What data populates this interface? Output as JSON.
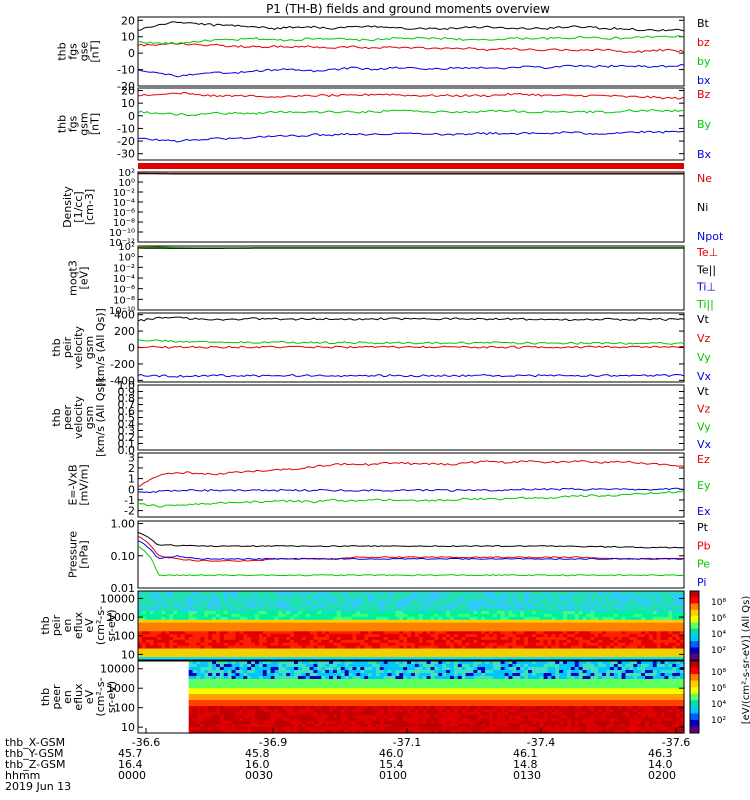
{
  "title": "P1  (TH-B) fields and ground moments overview",
  "colors": {
    "black": "#000000",
    "red": "#e00000",
    "green": "#00c800",
    "blue": "#0000e0"
  },
  "chart_data": [
    {
      "id": "fgs_dsl",
      "type": "line",
      "ylabel": [
        "thb",
        "fgs",
        "gse",
        "[nT]"
      ],
      "yticks": [
        -20,
        -10,
        0,
        10,
        20
      ],
      "ylim": [
        -20,
        22
      ],
      "legend": [
        {
          "name": "Bt",
          "color": "black"
        },
        {
          "name": "bz",
          "color": "red"
        },
        {
          "name": "by",
          "color": "green"
        },
        {
          "name": "bx",
          "color": "blue"
        }
      ],
      "series": [
        {
          "name": "Bt",
          "color": "black",
          "values": [
            14,
            17,
            19,
            18,
            17,
            17,
            16,
            15,
            16,
            16,
            15,
            16,
            16,
            16,
            15,
            15,
            15,
            16,
            16,
            15,
            15,
            15,
            16,
            16,
            15,
            15,
            14,
            14,
            14
          ]
        },
        {
          "name": "bz",
          "color": "red",
          "values": [
            5,
            5,
            6,
            5,
            5,
            4,
            4,
            4,
            4,
            4,
            3,
            4,
            3,
            4,
            3,
            3,
            3,
            3,
            2,
            3,
            2,
            2,
            2,
            2,
            2,
            1,
            1,
            2,
            1
          ]
        },
        {
          "name": "by",
          "color": "green",
          "values": [
            7,
            6,
            6,
            7,
            8,
            8,
            9,
            8,
            8,
            9,
            9,
            8,
            8,
            9,
            9,
            9,
            9,
            8,
            8,
            9,
            9,
            9,
            9,
            10,
            9,
            9,
            10,
            10,
            10
          ]
        },
        {
          "name": "bx",
          "color": "blue",
          "values": [
            -10,
            -12,
            -14,
            -13,
            -12,
            -12,
            -11,
            -10,
            -10,
            -11,
            -10,
            -9,
            -10,
            -9,
            -9,
            -10,
            -9,
            -9,
            -9,
            -9,
            -8,
            -9,
            -8,
            -8,
            -8,
            -8,
            -8,
            -8,
            -7
          ]
        }
      ]
    },
    {
      "id": "fgs_gsm",
      "type": "line",
      "ylabel": [
        "thb",
        "fgs",
        "gsm",
        "[nT]"
      ],
      "yticks": [
        -30,
        -20,
        -10,
        0,
        10,
        20
      ],
      "ylim": [
        -35,
        22
      ],
      "legend": [
        {
          "name": "Bz",
          "color": "red"
        },
        {
          "name": "By",
          "color": "green"
        },
        {
          "name": "Bx",
          "color": "blue"
        }
      ],
      "series": [
        {
          "name": "Bz",
          "color": "red",
          "values": [
            16,
            17,
            18,
            17,
            16,
            16,
            16,
            15,
            15,
            16,
            16,
            16,
            17,
            17,
            16,
            16,
            16,
            16,
            16,
            17,
            17,
            16,
            16,
            16,
            16,
            15,
            15,
            14,
            14
          ]
        },
        {
          "name": "By",
          "color": "green",
          "values": [
            3,
            2,
            1,
            1,
            2,
            2,
            2,
            3,
            3,
            3,
            3,
            3,
            3,
            4,
            4,
            3,
            3,
            3,
            4,
            4,
            3,
            3,
            3,
            3,
            3,
            4,
            4,
            4,
            4
          ]
        },
        {
          "name": "Bx",
          "color": "blue",
          "values": [
            -18,
            -19,
            -20,
            -19,
            -18,
            -18,
            -17,
            -16,
            -16,
            -15,
            -15,
            -14,
            -15,
            -14,
            -14,
            -14,
            -15,
            -14,
            -14,
            -14,
            -14,
            -14,
            -13,
            -14,
            -14,
            -13,
            -13,
            -13,
            -13
          ]
        }
      ]
    },
    {
      "id": "density",
      "type": "line",
      "ylabel": [
        "Density",
        "[1/cc]",
        "[cm-3]"
      ],
      "log": true,
      "ylim": [
        -12,
        2
      ],
      "yticklabels": [
        "10²",
        "10⁰",
        "10⁻²",
        "10⁻⁴",
        "10⁻⁶",
        "10⁻⁸",
        "10⁻¹⁰",
        "10⁻¹²"
      ],
      "legend": [
        {
          "name": "Ne",
          "color": "red"
        },
        {
          "name": "Ni",
          "color": "black"
        },
        {
          "name": "Npot",
          "color": "blue"
        }
      ],
      "series": [
        {
          "name": "Ne",
          "color": "red",
          "values": [
            1.1,
            1.0,
            1.0,
            1.0,
            1.0,
            1.0,
            1.0,
            1.0,
            1.0,
            1.0,
            1.0,
            1.0,
            1.0,
            1.0,
            1.0
          ]
        },
        {
          "name": "Ni",
          "color": "black",
          "values": [
            0.9,
            0.8,
            0.8,
            0.8,
            0.8,
            0.8,
            0.8,
            0.8,
            0.8,
            0.8,
            0.8,
            0.8,
            0.8,
            0.8,
            0.8
          ]
        }
      ]
    },
    {
      "id": "temperature",
      "type": "line",
      "ylabel": [
        "moqt3",
        "[eV]"
      ],
      "log": true,
      "ylim": [
        -10,
        2
      ],
      "yticklabels": [
        "10²",
        "10⁰",
        "10⁻²",
        "10⁻⁴",
        "10⁻⁶",
        "10⁻⁸",
        "10⁻¹⁰"
      ],
      "legend": [
        {
          "name": "Te⊥",
          "color": "red"
        },
        {
          "name": "Te||",
          "color": "black"
        },
        {
          "name": "Ti⊥",
          "color": "blue"
        },
        {
          "name": "Ti||",
          "color": "green"
        }
      ],
      "series": [
        {
          "name": "Te⊥",
          "color": "red",
          "values": [
            1.2,
            0.9,
            0.8,
            0.9,
            0.9,
            0.9,
            0.9,
            0.9,
            0.9,
            0.9,
            0.9,
            0.9,
            0.9,
            0.9,
            0.9
          ]
        },
        {
          "name": "Ti||",
          "color": "green",
          "values": [
            1.6,
            1.0,
            0.9,
            1.0,
            1.0,
            1.0,
            1.0,
            1.0,
            1.0,
            1.0,
            1.0,
            1.0,
            1.0,
            1.0,
            1.0
          ]
        },
        {
          "name": "Te||",
          "color": "black",
          "values": [
            0.8,
            0.7,
            0.7,
            0.8,
            0.8,
            0.8,
            0.8,
            0.8,
            0.8,
            0.8,
            0.8,
            0.8,
            0.8,
            0.8,
            0.8
          ]
        }
      ]
    },
    {
      "id": "peir_velocity",
      "type": "line",
      "ylabel": [
        "thb",
        "peir",
        "velocity",
        "gsm",
        "[km/s (All Qs)]"
      ],
      "yticks": [
        -400,
        -200,
        0,
        200,
        400
      ],
      "ylim": [
        -420,
        420
      ],
      "legend": [
        {
          "name": "Vt",
          "color": "black"
        },
        {
          "name": "Vz",
          "color": "red"
        },
        {
          "name": "Vy",
          "color": "green"
        },
        {
          "name": "Vx",
          "color": "blue"
        }
      ],
      "series": [
        {
          "name": "Vt",
          "color": "black",
          "values": [
            330,
            355,
            360,
            350,
            345,
            345,
            350,
            350,
            345,
            350,
            345,
            345,
            350,
            350,
            345,
            345,
            350,
            345,
            345,
            350,
            345,
            345,
            340,
            345,
            345,
            340,
            345,
            340,
            345
          ]
        },
        {
          "name": "Vy",
          "color": "green",
          "values": [
            90,
            85,
            75,
            70,
            65,
            65,
            60,
            60,
            65,
            60,
            60,
            60,
            55,
            60,
            60,
            55,
            55,
            55,
            60,
            55,
            55,
            50,
            55,
            50,
            55,
            50,
            50,
            50,
            50
          ]
        },
        {
          "name": "Vz",
          "color": "red",
          "values": [
            10,
            5,
            5,
            5,
            5,
            5,
            5,
            5,
            5,
            5,
            5,
            5,
            5,
            5,
            5,
            5,
            5,
            5,
            5,
            5,
            5,
            5,
            5,
            5,
            5,
            5,
            5,
            5,
            5
          ]
        },
        {
          "name": "Vx",
          "color": "blue",
          "values": [
            -330,
            -345,
            -350,
            -345,
            -340,
            -345,
            -345,
            -345,
            -340,
            -345,
            -340,
            -345,
            -345,
            -340,
            -345,
            -345,
            -340,
            -345,
            -340,
            -345,
            -345,
            -340,
            -340,
            -345,
            -340,
            -340,
            -345,
            -340,
            -340
          ]
        }
      ]
    },
    {
      "id": "peer_velocity",
      "type": "line",
      "ylabel": [
        "thb",
        "peer",
        "velocity",
        "gsm",
        "[km/s (All Qs)]"
      ],
      "yticks": [
        0,
        0.1,
        0.2,
        0.3,
        0.4,
        0.5,
        0.6,
        0.7,
        0.8,
        0.9,
        1.0
      ],
      "yticklabels": [
        "0.0",
        "0.1",
        "0.2",
        "0.3",
        "0.4",
        "0.5",
        "0.6",
        "0.7",
        "0.8",
        "0.9",
        "1.0"
      ],
      "ylim": [
        0,
        1
      ],
      "legend": [
        {
          "name": "Vt",
          "color": "black"
        },
        {
          "name": "Vz",
          "color": "red"
        },
        {
          "name": "Vy",
          "color": "green"
        },
        {
          "name": "Vx",
          "color": "blue"
        }
      ],
      "series": []
    },
    {
      "id": "efield",
      "type": "line",
      "ylabel": [
        "E=-VxB",
        "[mV/m]"
      ],
      "yticks": [
        -2,
        -1,
        0,
        1,
        2,
        3
      ],
      "ylim": [
        -2.6,
        3.4
      ],
      "legend": [
        {
          "name": "Ez",
          "color": "red"
        },
        {
          "name": "Ey",
          "color": "green"
        },
        {
          "name": "Ex",
          "color": "blue"
        }
      ],
      "series": [
        {
          "name": "Ez",
          "color": "red",
          "values": [
            0.3,
            1.3,
            1.6,
            1.5,
            1.4,
            1.6,
            1.7,
            1.8,
            1.9,
            2.1,
            2.3,
            2.4,
            2.3,
            2.5,
            2.4,
            2.4,
            2.3,
            2.5,
            2.6,
            2.5,
            2.6,
            2.5,
            2.6,
            2.6,
            2.5,
            2.6,
            2.4,
            2.3,
            2.1
          ]
        },
        {
          "name": "Ex",
          "color": "blue",
          "values": [
            -0.3,
            -0.2,
            -0.1,
            -0.1,
            -0.1,
            -0.1,
            -0.1,
            -0.1,
            -0.1,
            -0.1,
            -0.1,
            -0.1,
            -0.1,
            -0.1,
            -0.1,
            -0.1,
            -0.1,
            -0.1,
            -0.1,
            -0.1,
            0.0,
            0.0,
            0.0,
            0.0,
            0.0,
            0.0,
            0.0,
            0.0,
            0.0
          ]
        },
        {
          "name": "Ey",
          "color": "green",
          "values": [
            -1.3,
            -1.6,
            -1.5,
            -1.4,
            -1.3,
            -1.2,
            -1.2,
            -1.1,
            -1.1,
            -1.2,
            -1.0,
            -1.1,
            -1.0,
            -1.0,
            -1.0,
            -1.1,
            -1.0,
            -0.9,
            -0.9,
            -0.9,
            -0.8,
            -0.8,
            -0.7,
            -0.6,
            -0.6,
            -0.5,
            -0.4,
            -0.3,
            -0.2
          ]
        }
      ]
    },
    {
      "id": "pressure",
      "type": "line",
      "ylabel": [
        "Pressure",
        "[nPa]"
      ],
      "log": true,
      "ylim": [
        -2,
        0
      ],
      "ytickvals": [
        1,
        0.1,
        0.01
      ],
      "yticklabels": [
        "1.00",
        "0.10",
        "0.01"
      ],
      "legend": [
        {
          "name": "Pt",
          "color": "black"
        },
        {
          "name": "Pb",
          "color": "red"
        },
        {
          "name": "Pe",
          "color": "green"
        },
        {
          "name": "Pi",
          "color": "blue"
        }
      ],
      "series": [
        {
          "name": "Pt",
          "color": "black",
          "values": [
            0.55,
            0.22,
            0.21,
            0.2,
            0.2,
            0.2,
            0.2,
            0.2,
            0.2,
            0.2,
            0.2,
            0.2,
            0.2,
            0.2,
            0.2,
            0.2,
            0.2,
            0.2,
            0.2,
            0.2,
            0.2,
            0.2,
            0.2,
            0.19,
            0.19,
            0.19,
            0.18,
            0.18,
            0.18
          ]
        },
        {
          "name": "Pb",
          "color": "red",
          "values": [
            0.4,
            0.1,
            0.08,
            0.07,
            0.07,
            0.07,
            0.07,
            0.08,
            0.08,
            0.08,
            0.08,
            0.09,
            0.09,
            0.09,
            0.09,
            0.09,
            0.09,
            0.09,
            0.09,
            0.09,
            0.09,
            0.09,
            0.09,
            0.09,
            0.08,
            0.08,
            0.08,
            0.08,
            0.08
          ]
        },
        {
          "name": "Pi",
          "color": "blue",
          "values": [
            0.3,
            0.08,
            0.1,
            0.08,
            0.08,
            0.08,
            0.08,
            0.08,
            0.08,
            0.08,
            0.08,
            0.08,
            0.08,
            0.08,
            0.08,
            0.08,
            0.08,
            0.08,
            0.08,
            0.08,
            0.08,
            0.08,
            0.08,
            0.08,
            0.08,
            0.08,
            0.08,
            0.08,
            0.08
          ]
        },
        {
          "name": "Pe",
          "color": "green",
          "values": [
            0.2,
            0.025,
            0.025,
            0.025,
            0.025,
            0.025,
            0.025,
            0.025,
            0.025,
            0.025,
            0.025,
            0.025,
            0.025,
            0.025,
            0.025,
            0.025,
            0.025,
            0.025,
            0.025,
            0.025,
            0.025,
            0.025,
            0.025,
            0.025,
            0.025,
            0.025,
            0.025,
            0.025,
            0.025
          ]
        }
      ]
    },
    {
      "id": "peir_spec",
      "type": "heatmap",
      "ylabel": [
        "thb",
        "peir",
        "en",
        "eflux",
        "eV",
        "(cm²-s-",
        "sr-eV)"
      ],
      "log": true,
      "yticks": [
        10,
        100,
        1000,
        10000
      ],
      "yticklabels": [
        "10",
        "100",
        "1000",
        "10000"
      ],
      "ylim": [
        5,
        25000
      ]
    },
    {
      "id": "peer_spec",
      "type": "heatmap",
      "ylabel": [
        "thb",
        "peer",
        "en",
        "eflux",
        "eV",
        "(cm²-s-",
        "sr-eV)"
      ],
      "log": true,
      "yticks": [
        10,
        100,
        1000,
        10000
      ],
      "yticklabels": [
        "10",
        "100",
        "1000",
        "10000"
      ],
      "ylim": [
        5,
        25000
      ],
      "data_start": 0.09
    }
  ],
  "colorbar": {
    "ticklabels": [
      "10⁸",
      "10⁶",
      "10⁴",
      "10²"
    ],
    "label": "[eV/(cm²-s-sr-eV)] (All Qs)"
  },
  "xaxis": {
    "ticklabels": [
      "-36.6",
      "-36.9",
      "-37.1",
      "-37.4",
      "-37.6"
    ],
    "rows": [
      {
        "label": "thb_X-GSM",
        "values": [
          "-36.6",
          "-36.9",
          "-37.1",
          "-37.4",
          "-37.6"
        ]
      },
      {
        "label": "thb_Y-GSM",
        "values": [
          "45.7",
          "45.8",
          "46.0",
          "46.1",
          "46.3"
        ]
      },
      {
        "label": "thb_Z-GSM",
        "values": [
          "16.4",
          "16.0",
          "15.4",
          "14.8",
          "14.0"
        ]
      },
      {
        "label": "hhmm",
        "values": [
          "0000",
          "0030",
          "0100",
          "0130",
          "0200"
        ]
      }
    ],
    "date": "2019 Jun 13"
  }
}
